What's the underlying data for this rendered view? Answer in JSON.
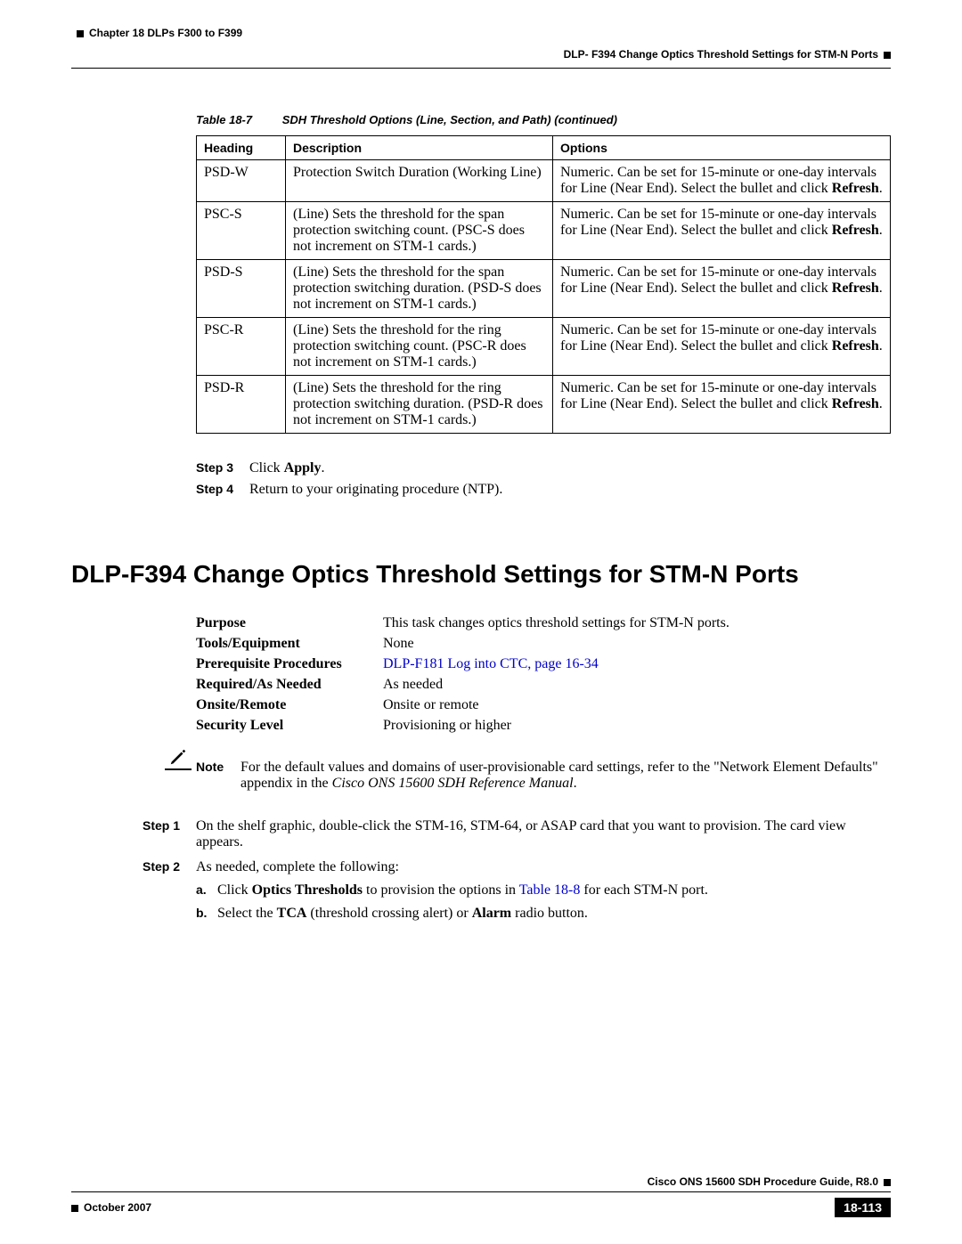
{
  "header": {
    "chapter": "Chapter 18 DLPs F300 to F399",
    "section": "DLP- F394 Change Optics Threshold Settings for STM-N Ports"
  },
  "table": {
    "label": "Table 18-7",
    "title": "SDH Threshold Options (Line, Section, and Path)  (continued)",
    "columns": [
      "Heading",
      "Description",
      "Options"
    ],
    "rows": [
      {
        "heading": "PSD-W",
        "description": "Protection Switch Duration (Working Line)",
        "options_pre": "Numeric. Can be set for 15-minute or one-day intervals for Line (Near End). Select the bullet and click ",
        "options_bold": "Refresh",
        "options_post": "."
      },
      {
        "heading": "PSC-S",
        "description": "(Line) Sets the threshold for the span protection switching count. (PSC-S does not increment on STM-1 cards.)",
        "options_pre": "Numeric. Can be set for 15-minute or one-day intervals for Line (Near End). Select the bullet and click ",
        "options_bold": "Refresh",
        "options_post": "."
      },
      {
        "heading": "PSD-S",
        "description": "(Line) Sets the threshold for the span protection switching duration. (PSD-S does not increment on STM-1 cards.)",
        "options_pre": "Numeric. Can be set for 15-minute or one-day intervals for Line (Near End). Select the bullet and click ",
        "options_bold": "Refresh",
        "options_post": "."
      },
      {
        "heading": "PSC-R",
        "description": "(Line) Sets the threshold for the ring protection switching count. (PSC-R does not increment on STM-1 cards.)",
        "options_pre": "Numeric. Can be set for 15-minute or one-day intervals for Line (Near End). Select the bullet and click ",
        "options_bold": "Refresh",
        "options_post": "."
      },
      {
        "heading": "PSD-R",
        "description": "(Line) Sets the threshold for the ring protection switching duration. (PSD-R does not increment on STM-1 cards.)",
        "options_pre": "Numeric. Can be set for 15-minute or one-day intervals for Line (Near End). Select the bullet and click ",
        "options_bold": "Refresh",
        "options_post": "."
      }
    ]
  },
  "steps_top": {
    "step3_label": "Step 3",
    "step3_pre": "Click ",
    "step3_bold": "Apply",
    "step3_post": ".",
    "step4_label": "Step 4",
    "step4_text": "Return to your originating procedure (NTP)."
  },
  "section_title": "DLP-F394 Change Optics Threshold Settings for STM-N Ports",
  "meta": {
    "purpose_label": "Purpose",
    "purpose_value": "This task changes optics threshold settings for STM-N ports.",
    "tools_label": "Tools/Equipment",
    "tools_value": "None",
    "prereq_label": "Prerequisite Procedures",
    "prereq_link": "DLP-F181 Log into CTC, page 16-34",
    "required_label": "Required/As Needed",
    "required_value": "As needed",
    "onsite_label": "Onsite/Remote",
    "onsite_value": "Onsite or remote",
    "security_label": "Security Level",
    "security_value": "Provisioning or higher"
  },
  "note": {
    "label": "Note",
    "text_pre": "For the default values and domains of user-provisionable card settings, refer to the \"Network Element Defaults\" appendix in the ",
    "text_italic": "Cisco ONS 15600 SDH Reference Manual",
    "text_post": "."
  },
  "steps_bottom": {
    "step1_label": "Step 1",
    "step1_text": "On the shelf graphic, double-click the STM-16, STM-64, or ASAP card that you want to provision. The card view appears.",
    "step2_label": "Step 2",
    "step2_text": "As needed, complete the following:",
    "sub_a_label": "a.",
    "sub_a_pre": "Click ",
    "sub_a_bold1": "Optics Thresholds",
    "sub_a_mid": " to provision the options in ",
    "sub_a_link": "Table 18-8",
    "sub_a_post": " for each STM-N port.",
    "sub_b_label": "b.",
    "sub_b_pre": "Select the ",
    "sub_b_bold1": "TCA",
    "sub_b_mid": " (threshold crossing alert) or ",
    "sub_b_bold2": "Alarm",
    "sub_b_post": " radio button."
  },
  "footer": {
    "guide": "Cisco ONS 15600 SDH Procedure Guide, R8.0",
    "date": "October 2007",
    "page": "18-113"
  }
}
